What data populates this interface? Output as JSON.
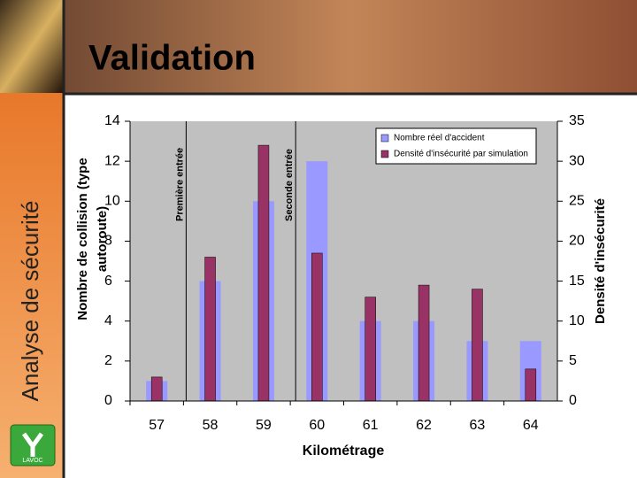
{
  "slide": {
    "title": "Validation",
    "side_title": "Analyse de sécurité",
    "logo": "LAVOC"
  },
  "chart_data": {
    "type": "bar",
    "x": [
      57,
      58,
      59,
      60,
      61,
      62,
      63,
      64
    ],
    "xlim": [
      56.5,
      64.5
    ],
    "xticks": [
      57,
      58,
      59,
      60,
      61,
      62,
      63,
      64
    ],
    "xlabel": "Kilométrage",
    "ylabel": [
      "Nombre de collision (type",
      "autoroute)"
    ],
    "y2label": "Densité d'insécurité",
    "ylim": [
      0,
      14
    ],
    "yticks": [
      0,
      2,
      4,
      6,
      8,
      10,
      12,
      14
    ],
    "y2lim": [
      0,
      35
    ],
    "y2ticks": [
      0,
      5,
      10,
      15,
      20,
      25,
      30,
      35
    ],
    "legend": "upper right",
    "series": [
      {
        "name": "Nombre réel d'accident",
        "color": "#9999ff",
        "values": [
          1,
          6,
          10,
          12,
          4,
          4,
          3,
          3
        ]
      },
      {
        "name": "Densité d'insécurité par simulation",
        "color": "#993366",
        "axis": "y2",
        "values": [
          3,
          18,
          32,
          18.5,
          13,
          14.5,
          14,
          4
        ]
      }
    ],
    "annotations": [
      {
        "text": "Première entrée",
        "x": 57.55
      },
      {
        "text": "Seconde entrée",
        "x": 59.6
      }
    ]
  }
}
